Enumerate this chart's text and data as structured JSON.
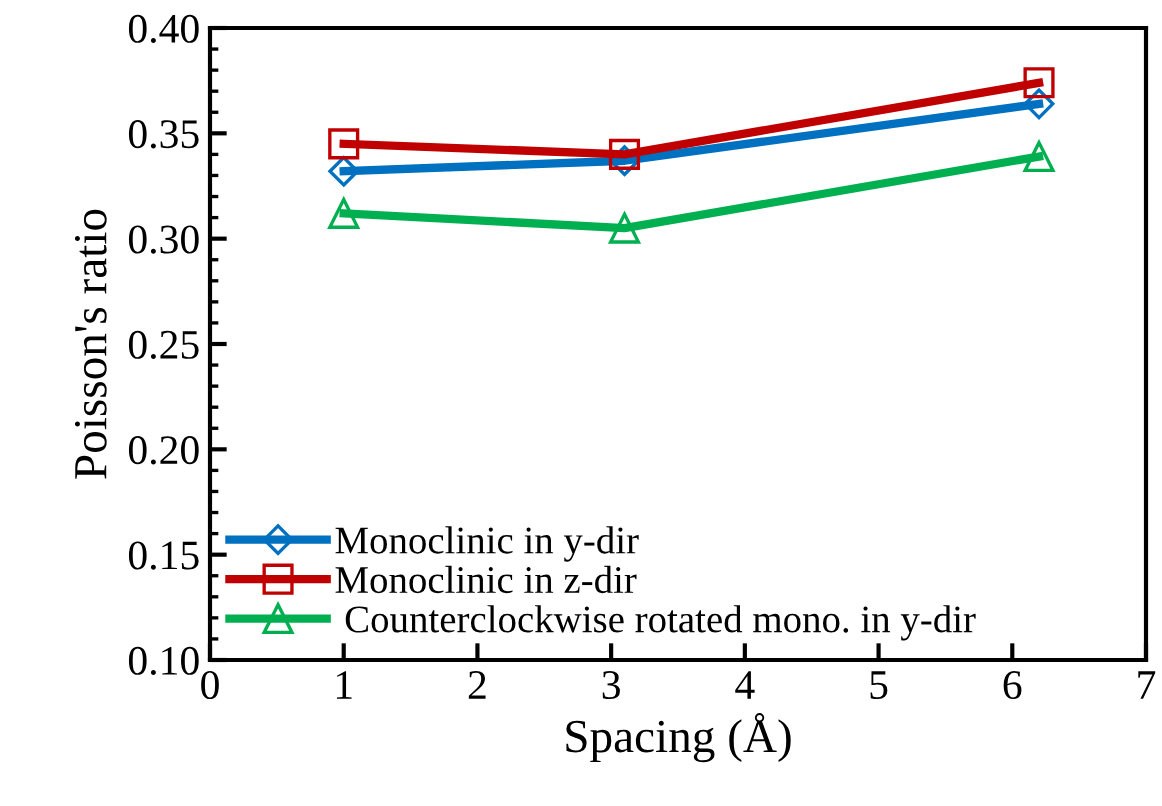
{
  "chart_data": {
    "type": "line",
    "xlabel": "Spacing (Å)",
    "ylabel": "Poisson's ratio",
    "xlim": [
      0,
      7
    ],
    "xticks": [
      0,
      1,
      2,
      3,
      4,
      5,
      6,
      7
    ],
    "ylim": [
      0.1,
      0.4
    ],
    "yticks": [
      {
        "value": 0.1,
        "label": "0.10"
      },
      {
        "value": 0.15,
        "label": "0.15"
      },
      {
        "value": 0.2,
        "label": "0.20"
      },
      {
        "value": 0.25,
        "label": "0.25"
      },
      {
        "value": 0.3,
        "label": "0.30"
      },
      {
        "value": 0.35,
        "label": "0.35"
      },
      {
        "value": 0.4,
        "label": "0.40"
      }
    ],
    "x": [
      1,
      3.1,
      6.2
    ],
    "grid": false,
    "legend": "bottom left",
    "line_style": "solid",
    "series": [
      {
        "name": "Monoclinic in y-dir",
        "color": "#0070c0",
        "marker": "diamond",
        "values": [
          0.332,
          0.337,
          0.364
        ]
      },
      {
        "name": "Monoclinic in z-dir",
        "color": "#c00000",
        "marker": "square",
        "values": [
          0.345,
          0.34,
          0.374
        ]
      },
      {
        "name": " Counterclockwise rotated mono. in y-dir",
        "color": "#00b050",
        "marker": "triangle",
        "values": [
          0.312,
          0.305,
          0.339
        ]
      }
    ]
  }
}
